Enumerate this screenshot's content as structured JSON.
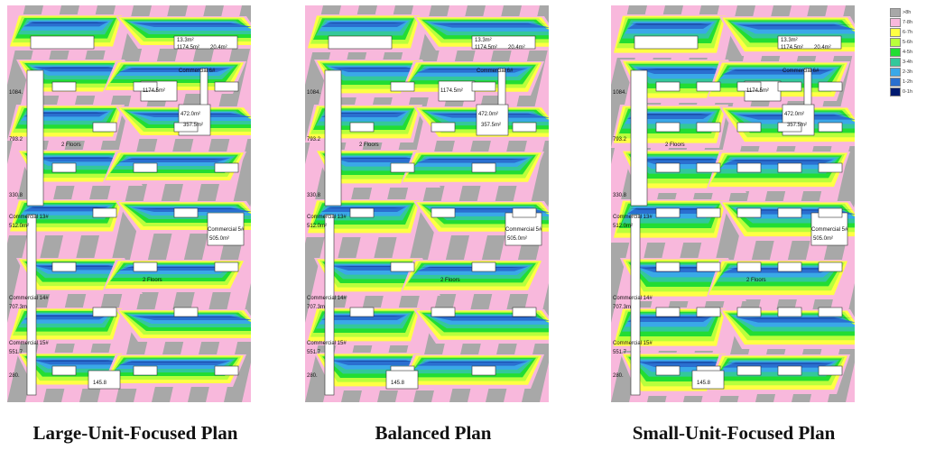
{
  "colors": {
    "gray": "#a8a8a8",
    "pink": "#f8b8dc",
    "yellow": "#ffff44",
    "lightgreen": "#b9ff3c",
    "green": "#22dd33",
    "teal": "#33c89a",
    "lightblue": "#3aa8e8",
    "blue": "#2a6fd0",
    "navy": "#001a70"
  },
  "legend": [
    {
      "label": ">8h",
      "color": "#a8a8a8"
    },
    {
      "label": "7-8h",
      "color": "#f8b8dc"
    },
    {
      "label": "6-7h",
      "color": "#ffff44"
    },
    {
      "label": "5-6h",
      "color": "#b9ff3c"
    },
    {
      "label": "4-5h",
      "color": "#22dd33"
    },
    {
      "label": "3-4h",
      "color": "#33c89a"
    },
    {
      "label": "2-3h",
      "color": "#3aa8e8"
    },
    {
      "label": "1-2h",
      "color": "#2a6fd0"
    },
    {
      "label": "0-1h",
      "color": "#001a70"
    }
  ],
  "panels": [
    {
      "caption": "Large-Unit-Focused Plan",
      "variant": "large"
    },
    {
      "caption": "Balanced Plan",
      "variant": "balanced"
    },
    {
      "caption": "Small-Unit-Focused Plan",
      "variant": "small"
    }
  ],
  "labels": {
    "area_1": "1174.5m²",
    "area_2": "20.4m²",
    "area_3": "13.3m²",
    "commercial_6": "Commercial 6#",
    "commercial_5": "Commercial 5#",
    "commercial_13": "Commercial 13#",
    "commercial_14": "Commercial 14#",
    "commercial_15": "Commercial 15#",
    "area_1084": "1084.",
    "area_793": "793.2",
    "area_330": "330.8",
    "area_512": "512.0m²",
    "area_707": "707.3m",
    "area_551": "551.7",
    "area_280": "280.",
    "area_472": "472.0m²",
    "area_357": "357.5m²",
    "area_505": "505.0m²",
    "area_145": "145.8",
    "floors": "2 Floors"
  }
}
